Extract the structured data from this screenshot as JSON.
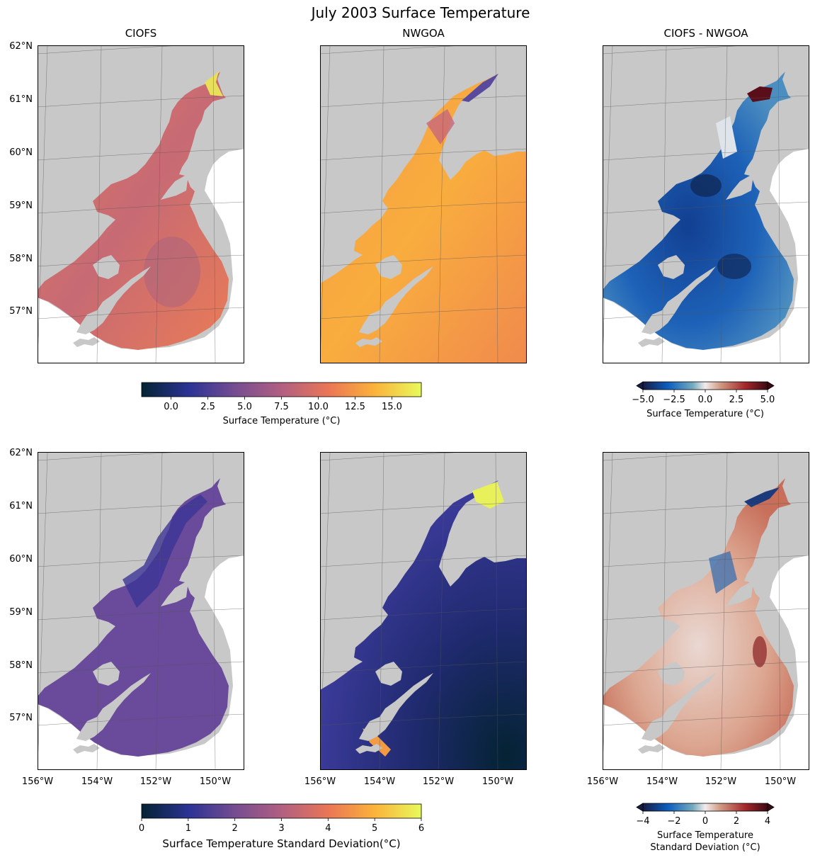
{
  "chart_data": {
    "type": "heatmap",
    "title": "July 2003 Surface Temperature",
    "lat_tick_labels": [
      "62°N",
      "61°N",
      "60°N",
      "59°N",
      "58°N",
      "57°N"
    ],
    "lon_tick_labels": [
      "156°W",
      "154°W",
      "152°W",
      "150°W"
    ],
    "panels": [
      {
        "name": "ciofs-mean",
        "row": 1,
        "col": 1,
        "title": "CIOFS",
        "field": "mean surface temperature",
        "extent": "ciofs"
      },
      {
        "name": "nwgoa-mean",
        "row": 1,
        "col": 2,
        "title": "NWGOA",
        "field": "mean surface temperature",
        "extent": "nwgoa"
      },
      {
        "name": "diff-mean",
        "row": 1,
        "col": 3,
        "title": "CIOFS - NWGOA",
        "field": "mean difference",
        "extent": "ciofs"
      },
      {
        "name": "ciofs-std",
        "row": 2,
        "col": 1,
        "title": "",
        "field": "standard deviation",
        "extent": "ciofs"
      },
      {
        "name": "nwgoa-std",
        "row": 2,
        "col": 2,
        "title": "",
        "field": "standard deviation",
        "extent": "nwgoa"
      },
      {
        "name": "diff-std",
        "row": 2,
        "col": 3,
        "title": "",
        "field": "std difference",
        "extent": "ciofs"
      }
    ],
    "colorbars": [
      {
        "name": "temp",
        "cmap": "thermal",
        "range": [
          -2,
          17
        ],
        "ticks": [
          0,
          2.5,
          5,
          7.5,
          10,
          12.5,
          15
        ],
        "tick_labels": [
          "0.0",
          "2.5",
          "5.0",
          "7.5",
          "10.0",
          "12.5",
          "15.0"
        ],
        "label": "Surface Temperature (°C)",
        "extend": "neither"
      },
      {
        "name": "temp-diff",
        "cmap": "balance",
        "range": [
          -5,
          5
        ],
        "ticks": [
          -5,
          -2.5,
          0,
          2.5,
          5
        ],
        "tick_labels": [
          "−5.0",
          "−2.5",
          "0.0",
          "2.5",
          "5.0"
        ],
        "label": "Surface Temperature (°C)",
        "extend": "both"
      },
      {
        "name": "std",
        "cmap": "thermal",
        "range": [
          0,
          6
        ],
        "ticks": [
          0,
          1,
          2,
          3,
          4,
          5,
          6
        ],
        "tick_labels": [
          "0",
          "1",
          "2",
          "3",
          "4",
          "5",
          "6"
        ],
        "label": "Surface Temperature Standard Deviation(°C)",
        "extend": "neither"
      },
      {
        "name": "std-diff",
        "cmap": "balance",
        "range": [
          -4,
          4
        ],
        "ticks": [
          -4,
          -2,
          0,
          2,
          4
        ],
        "tick_labels": [
          "−4",
          "−2",
          "0",
          "2",
          "4"
        ],
        "label_lines": [
          "Surface Temperature",
          "Standard Deviation (°C)"
        ],
        "extend": "both"
      }
    ]
  },
  "colors": {
    "land": "#c8c8c8",
    "thermal": [
      "#042333",
      "#2c3395",
      "#744c91",
      "#b15f82",
      "#eb7655",
      "#fbb13b",
      "#e8fa5b"
    ],
    "balance": [
      "#181c43",
      "#0c5ebe",
      "#75aabe",
      "#f1ecec",
      "#d09a83",
      "#a4282c",
      "#3c0912"
    ]
  }
}
